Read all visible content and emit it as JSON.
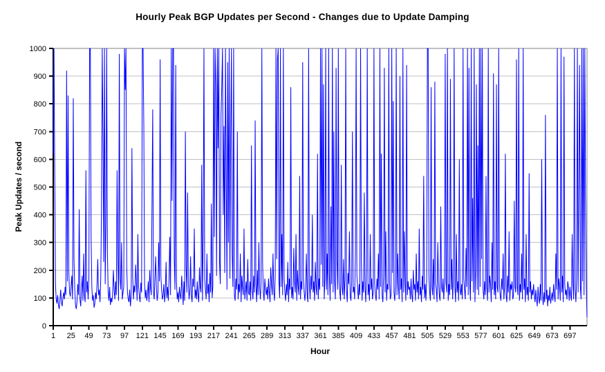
{
  "chart_data": {
    "type": "line",
    "title": "Hourly Peak BGP Updates per Second - Changes due to Update Damping",
    "xlabel": "Hour",
    "ylabel": "Peak Updates / second",
    "ylim": [
      0,
      1000
    ],
    "y_ticks": [
      0,
      100,
      200,
      300,
      400,
      500,
      600,
      700,
      800,
      900,
      1000
    ],
    "x_ticks": [
      1,
      25,
      49,
      73,
      97,
      121,
      145,
      169,
      193,
      217,
      241,
      265,
      289,
      313,
      337,
      361,
      385,
      409,
      433,
      457,
      481,
      505,
      529,
      553,
      577,
      601,
      625,
      649,
      673,
      697
    ],
    "x_start": 1,
    "grid": "horizontal",
    "legend": "none",
    "colors": {
      "line": "#0000ff",
      "gridline": "#c0c0c0",
      "plot_border": "#808080",
      "axis": "#000000",
      "background": "#ffffff"
    },
    "series": [
      {
        "name": "Peak Updates / second",
        "color": "#0000ff",
        "values": [
          620,
          1000,
          560,
          150,
          95,
          80,
          110,
          75,
          60,
          90,
          130,
          85,
          70,
          100,
          120,
          95,
          140,
          110,
          920,
          160,
          830,
          190,
          120,
          105,
          140,
          180,
          95,
          820,
          240,
          130,
          75,
          60,
          85,
          150,
          110,
          420,
          95,
          70,
          130,
          180,
          90,
          260,
          110,
          85,
          560,
          120,
          160,
          95,
          170,
          1000,
          1000,
          320,
          140,
          90,
          110,
          65,
          80,
          120,
          95,
          150,
          240,
          110,
          130,
          85,
          170,
          420,
          1000,
          680,
          230,
          1000,
          150,
          380,
          1000,
          260,
          120,
          90,
          140,
          75,
          100,
          85,
          115,
          200,
          130,
          95,
          160,
          110,
          560,
          240,
          90,
          980,
          170,
          130,
          300,
          95,
          120,
          140,
          1000,
          850,
          1000,
          210,
          120,
          95,
          85,
          130,
          70,
          110,
          640,
          180,
          95,
          145,
          120,
          220,
          160,
          90,
          330,
          140,
          105,
          85,
          155,
          120,
          1000,
          1000,
          720,
          150,
          100,
          130,
          90,
          115,
          160,
          85,
          200,
          140,
          110,
          430,
          780,
          120,
          95,
          170,
          250,
          135,
          90,
          115,
          300,
          160,
          960,
          180,
          130,
          95,
          110,
          150,
          85,
          120,
          230,
          100,
          140,
          90,
          170,
          320,
          110,
          1000,
          450,
          1000,
          1000,
          240,
          130,
          940,
          160,
          95,
          120,
          85,
          140,
          110,
          95,
          180,
          130,
          75,
          160,
          90,
          700,
          210,
          120,
          480,
          150,
          95,
          130,
          250,
          110,
          85,
          170,
          140,
          350,
          100,
          130,
          95,
          160,
          110,
          85,
          210,
          140,
          120,
          580,
          90,
          330,
          1000,
          170,
          130,
          95,
          260,
          115,
          150,
          85,
          190,
          120,
          440,
          100,
          140,
          1000,
          320,
          1000,
          870,
          180,
          1000,
          640,
          1000,
          230,
          150,
          760,
          860,
          1000,
          400,
          720,
          190,
          1000,
          560,
          130,
          950,
          300,
          1000,
          170,
          680,
          1000,
          260,
          140,
          1000,
          110,
          90,
          170,
          130,
          700,
          95,
          150,
          120,
          260,
          85,
          180,
          140,
          110,
          350,
          95,
          130,
          160,
          90,
          240,
          120,
          110,
          160,
          90,
          650,
          130,
          95,
          180,
          120,
          740,
          150,
          85,
          200,
          110,
          300,
          140,
          95,
          160,
          1000,
          230,
          120,
          90,
          170,
          130,
          110,
          140,
          95,
          170,
          120,
          85,
          210,
          150,
          110,
          260,
          130,
          90,
          180,
          1000,
          240,
          960,
          1000,
          160,
          100,
          1000,
          140,
          330,
          110,
          1000,
          170,
          120,
          90,
          150,
          110,
          230,
          85,
          170,
          130,
          860,
          100,
          140,
          95,
          280,
          160,
          120,
          330,
          90,
          200,
          140,
          110,
          540,
          95,
          160,
          130,
          950,
          170,
          120,
          90,
          140,
          260,
          110,
          85,
          1000,
          150,
          95,
          180,
          130,
          400,
          120,
          160,
          90,
          230,
          140,
          110,
          620,
          95,
          170,
          130,
          1000,
          220,
          1000,
          140,
          870,
          95,
          170,
          1000,
          130,
          260,
          110,
          1000,
          180,
          90,
          430,
          150,
          1000,
          120,
          700,
          160,
          95,
          930,
          240,
          130,
          1000,
          160,
          120,
          90,
          580,
          140,
          110,
          240,
          95,
          170,
          1000,
          130,
          85,
          190,
          150,
          340,
          110,
          90,
          160,
          700,
          120,
          140,
          95,
          260,
          1000,
          180,
          130,
          95,
          150,
          110,
          1000,
          240,
          90,
          160,
          120,
          480,
          140,
          85,
          200,
          1000,
          110,
          150,
          90,
          330,
          130,
          170,
          95,
          120,
          1000,
          150,
          110,
          90,
          170,
          130,
          260,
          95,
          1000,
          140,
          620,
          110,
          85,
          180,
          930,
          120,
          340,
          90,
          150,
          130,
          1000,
          160,
          95,
          110,
          1000,
          190,
          810,
          120,
          90,
          150,
          1000,
          110,
          260,
          140,
          95,
          900,
          130,
          170,
          85,
          1000,
          120,
          340,
          150,
          90,
          940,
          110,
          160,
          130,
          140,
          95,
          170,
          110,
          85,
          200,
          130,
          150,
          90,
          260,
          120,
          160,
          95,
          350,
          110,
          140,
          85,
          180,
          130,
          540,
          100,
          150,
          90,
          160,
          1000,
          1000,
          180,
          120,
          90,
          860,
          140,
          110,
          240,
          95,
          880,
          150,
          130,
          85,
          300,
          160,
          110,
          90,
          430,
          140,
          120,
          170,
          95,
          150,
          980,
          160,
          120,
          1000,
          90,
          150,
          110,
          890,
          130,
          240,
          95,
          170,
          1000,
          140,
          85,
          330,
          120,
          160,
          90,
          600,
          130,
          110,
          150,
          95,
          1000,
          170,
          130,
          95,
          280,
          140,
          1000,
          110,
          930,
          150,
          90,
          1000,
          160,
          460,
          120,
          1000,
          85,
          200,
          870,
          130,
          650,
          110,
          1000,
          140,
          1000,
          240,
          1000,
          130,
          95,
          160,
          110,
          540,
          140,
          90,
          1000,
          120,
          180,
          150,
          85,
          300,
          130,
          910,
          110,
          160,
          95,
          870,
          140,
          120,
          1000,
          150,
          110,
          90,
          170,
          130,
          260,
          95,
          140,
          620,
          110,
          85,
          180,
          120,
          340,
          90,
          150,
          130,
          160,
          95,
          110,
          450,
          140,
          120,
          960,
          140,
          110,
          1000,
          90,
          150,
          120,
          260,
          95,
          1000,
          130,
          170,
          85,
          330,
          110,
          140,
          90,
          550,
          120,
          160,
          95,
          130,
          110,
          150,
          110,
          85,
          130,
          95,
          70,
          140,
          100,
          80,
          150,
          90,
          600,
          110,
          75,
          120,
          85,
          760,
          95,
          130,
          70,
          110,
          90,
          140,
          80,
          100,
          120,
          90,
          150,
          110,
          85,
          260,
          130,
          1000,
          95,
          170,
          140,
          90,
          1000,
          120,
          180,
          85,
          970,
          150,
          110,
          130,
          95,
          160,
          140,
          90,
          140,
          110,
          90,
          330,
          150,
          95,
          1000,
          130,
          85,
          170,
          1000,
          120,
          520,
          940,
          140,
          95,
          1000,
          160,
          1000,
          110,
          1000,
          480,
          150,
          30
        ]
      }
    ]
  }
}
